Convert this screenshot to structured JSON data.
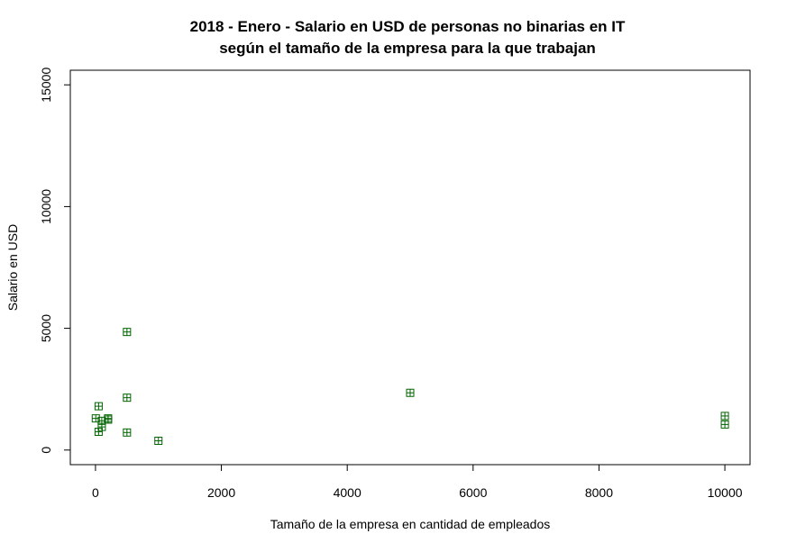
{
  "chart_data": {
    "type": "scatter",
    "title_line1": "2018 - Enero - Salario en USD de personas no binarias en IT",
    "title_line2": "según el tamaño de la empresa para la que trabajan",
    "xlabel": "Tamaño de la empresa en cantidad de empleados",
    "ylabel": "Salario en USD",
    "xlim": [
      -400,
      10400
    ],
    "ylim": [
      -600,
      15600
    ],
    "x_ticks": [
      0,
      2000,
      4000,
      6000,
      8000,
      10000
    ],
    "y_ticks": [
      0,
      5000,
      10000,
      15000
    ],
    "marker_color": "#006400",
    "marker": "boxed-plus",
    "points": [
      {
        "x": 5,
        "y": 1300
      },
      {
        "x": 50,
        "y": 1800
      },
      {
        "x": 50,
        "y": 750
      },
      {
        "x": 100,
        "y": 1200
      },
      {
        "x": 100,
        "y": 950
      },
      {
        "x": 200,
        "y": 1300
      },
      {
        "x": 200,
        "y": 1250
      },
      {
        "x": 500,
        "y": 4850
      },
      {
        "x": 500,
        "y": 2150
      },
      {
        "x": 500,
        "y": 720
      },
      {
        "x": 1000,
        "y": 380
      },
      {
        "x": 5000,
        "y": 2350
      },
      {
        "x": 10000,
        "y": 1400
      },
      {
        "x": 10000,
        "y": 1050
      }
    ]
  }
}
